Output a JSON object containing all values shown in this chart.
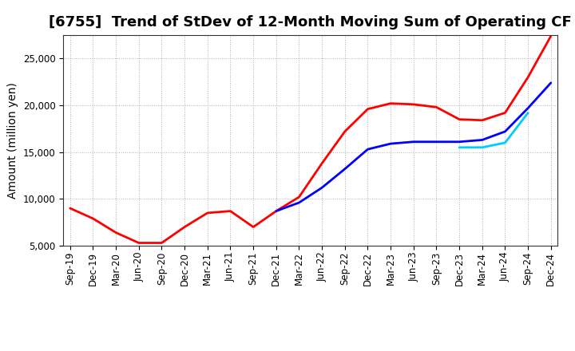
{
  "title": "[6755]  Trend of StDev of 12-Month Moving Sum of Operating CF",
  "ylabel": "Amount (million yen)",
  "background_color": "#ffffff",
  "grid_color": "#b0b0b0",
  "ylim": [
    5000,
    27500
  ],
  "yticks": [
    5000,
    10000,
    15000,
    20000,
    25000
  ],
  "series": {
    "3 Years": {
      "color": "#ff0000",
      "data": {
        "Sep-19": 9000,
        "Dec-19": 7900,
        "Mar-20": 6400,
        "Jun-20": 5300,
        "Sep-20": 5300,
        "Dec-20": 7000,
        "Mar-21": 8500,
        "Jun-21": 8700,
        "Sep-21": 7000,
        "Dec-21": 8700,
        "Mar-22": 10200,
        "Jun-22": 13800,
        "Sep-22": 17200,
        "Dec-22": 19600,
        "Mar-23": 20200,
        "Jun-23": 20100,
        "Sep-23": 19800,
        "Dec-23": 18500,
        "Mar-24": 18400,
        "Jun-24": 19200,
        "Sep-24": 23000,
        "Dec-24": 27400
      }
    },
    "5 Years": {
      "color": "#0000ff",
      "data": {
        "Dec-21": 8700,
        "Mar-22": 9600,
        "Jun-22": 11200,
        "Sep-22": 13200,
        "Dec-22": 15300,
        "Mar-23": 15900,
        "Jun-23": 16100,
        "Sep-23": 16100,
        "Dec-23": 16100,
        "Mar-24": 16300,
        "Jun-24": 17200,
        "Sep-24": 19700,
        "Dec-24": 22400
      }
    },
    "7 Years": {
      "color": "#00ccff",
      "data": {
        "Dec-23": 15500,
        "Mar-24": 15500,
        "Jun-24": 16000,
        "Sep-24": 19200
      }
    },
    "10 Years": {
      "color": "#008000",
      "data": {}
    }
  },
  "xtick_labels": [
    "Sep-19",
    "Dec-19",
    "Mar-20",
    "Jun-20",
    "Sep-20",
    "Dec-20",
    "Mar-21",
    "Jun-21",
    "Sep-21",
    "Dec-21",
    "Mar-22",
    "Jun-22",
    "Sep-22",
    "Dec-22",
    "Mar-23",
    "Jun-23",
    "Sep-23",
    "Dec-23",
    "Mar-24",
    "Jun-24",
    "Sep-24",
    "Dec-24"
  ],
  "title_fontsize": 13,
  "axis_label_fontsize": 10,
  "tick_fontsize": 8.5,
  "legend_fontsize": 10,
  "linewidth": 2.0
}
